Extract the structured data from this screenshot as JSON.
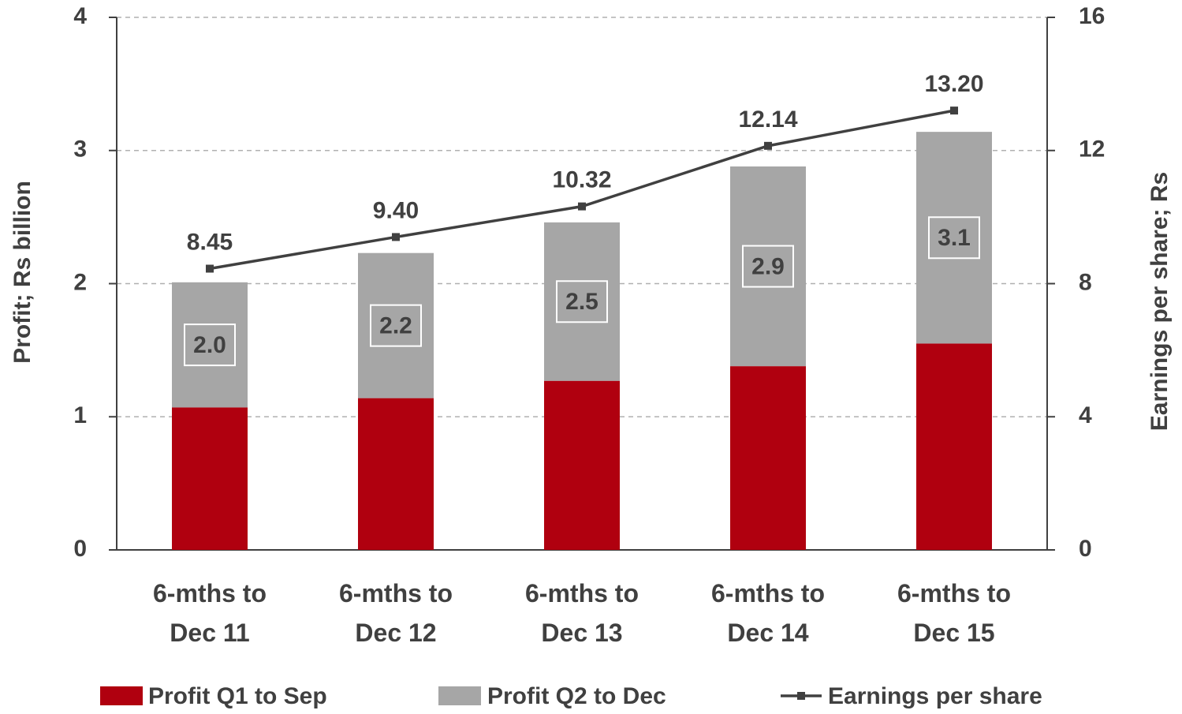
{
  "chart_data": {
    "type": "bar_line",
    "categories": [
      "6-mths to Dec 11",
      "6-mths to Dec 12",
      "6-mths to Dec 13",
      "6-mths to Dec 14",
      "6-mths to Dec 15"
    ],
    "series": [
      {
        "name": "Profit Q1 to Sep",
        "color": "#b0000f",
        "values": [
          1.07,
          1.14,
          1.27,
          1.38,
          1.55
        ]
      },
      {
        "name": "Profit Q2 to Dec",
        "color": "#a6a6a6",
        "values": [
          0.94,
          1.09,
          1.19,
          1.5,
          1.59
        ]
      },
      {
        "name": "Earnings per share",
        "color": "#404040",
        "axis": "y2",
        "values": [
          8.45,
          9.4,
          10.32,
          12.14,
          13.2
        ],
        "value_labels": [
          "8.45",
          "9.40",
          "10.32",
          "12.14",
          "13.20"
        ]
      }
    ],
    "totals": [
      2.01,
      2.23,
      2.46,
      2.88,
      3.14
    ],
    "total_labels": [
      "2.0",
      "2.2",
      "2.5",
      "2.9",
      "3.1"
    ],
    "ylabel": "Profit; Rs billion",
    "y2label": "Earnings per share; Rs",
    "ylim": [
      0,
      4
    ],
    "yticks": [
      0,
      1,
      2,
      3,
      4
    ],
    "y2lim": [
      0,
      16
    ],
    "y2ticks": [
      0,
      4,
      8,
      12,
      16
    ],
    "grid": true,
    "legend": "bottom"
  }
}
